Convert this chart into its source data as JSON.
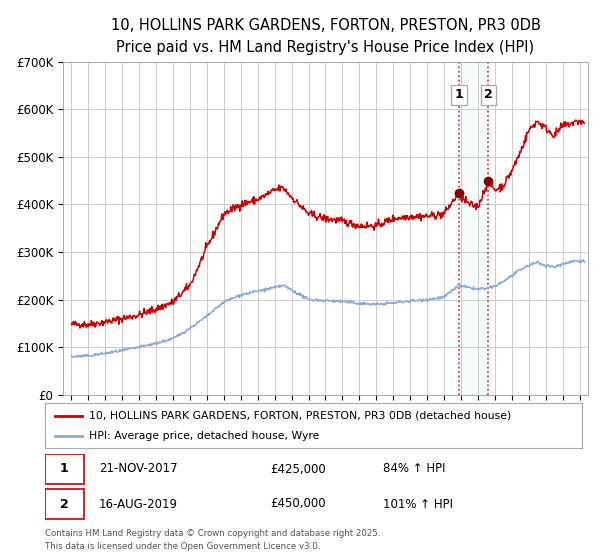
{
  "title1": "10, HOLLINS PARK GARDENS, FORTON, PRESTON, PR3 0DB",
  "title2": "Price paid vs. HM Land Registry's House Price Index (HPI)",
  "ylabel_ticks": [
    "£0",
    "£100K",
    "£200K",
    "£300K",
    "£400K",
    "£500K",
    "£600K",
    "£700K"
  ],
  "ylabel_values": [
    0,
    100000,
    200000,
    300000,
    400000,
    500000,
    600000,
    700000
  ],
  "ylim": [
    0,
    700000
  ],
  "xlim_start": 1994.5,
  "xlim_end": 2025.5,
  "red_color": "#cc0000",
  "blue_color": "#88aadd",
  "marker1_x": 2017.89,
  "marker1_y": 425000,
  "marker2_x": 2019.62,
  "marker2_y": 450000,
  "legend_label_red": "10, HOLLINS PARK GARDENS, FORTON, PRESTON, PR3 0DB (detached house)",
  "legend_label_blue": "HPI: Average price, detached house, Wyre",
  "table_rows": [
    {
      "num": "1",
      "date": "21-NOV-2017",
      "price": "£425,000",
      "hpi": "84% ↑ HPI"
    },
    {
      "num": "2",
      "date": "16-AUG-2019",
      "price": "£450,000",
      "hpi": "101% ↑ HPI"
    }
  ],
  "footnote": "Contains HM Land Registry data © Crown copyright and database right 2025.\nThis data is licensed under the Open Government Licence v3.0.",
  "background_color": "#ffffff",
  "grid_color": "#cccccc"
}
